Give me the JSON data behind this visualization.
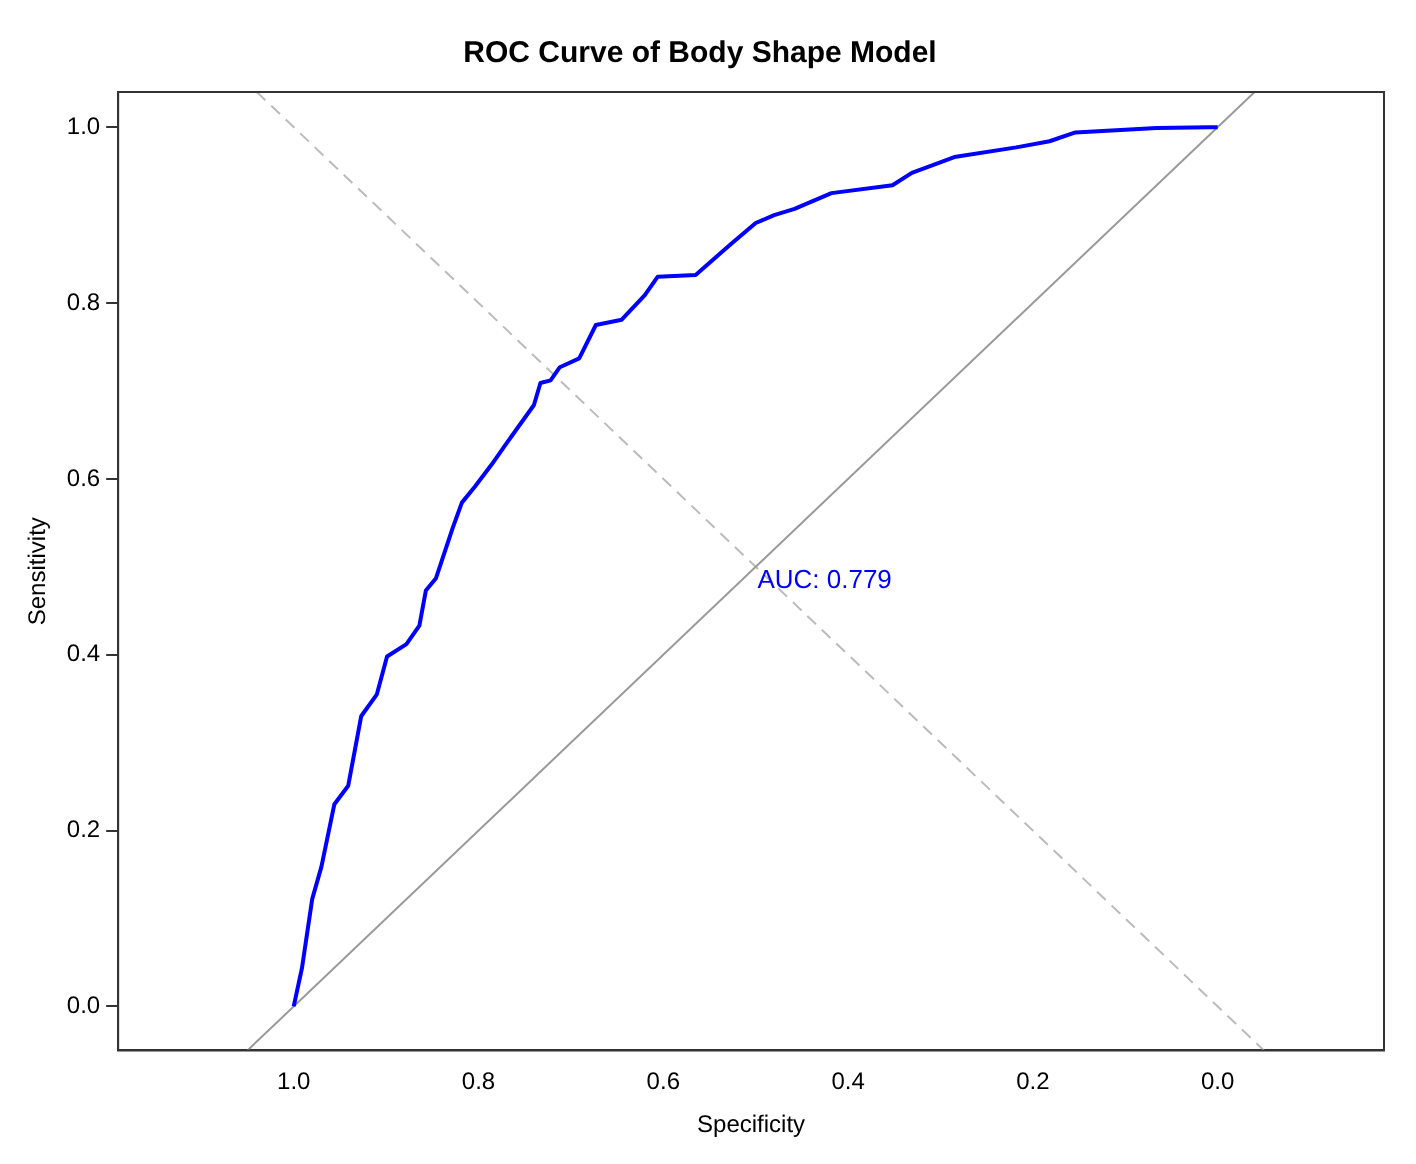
{
  "chart_data": {
    "type": "line",
    "title": "ROC Curve of Body Shape Model",
    "xlabel": "Specificity",
    "ylabel": "Sensitivity",
    "xlim": [
      1.19,
      -0.18
    ],
    "ylim": [
      -0.05,
      1.04
    ],
    "xticks": [
      {
        "value": 1,
        "label": "1.0"
      },
      {
        "value": 0.8,
        "label": "0.8"
      },
      {
        "value": 0.6,
        "label": "0.6"
      },
      {
        "value": 0.4,
        "label": "0.4"
      },
      {
        "value": 0.2,
        "label": "0.2"
      },
      {
        "value": 0,
        "label": "0.0"
      }
    ],
    "yticks": [
      {
        "value": 0,
        "label": "0.0"
      },
      {
        "value": 0.2,
        "label": "0.2"
      },
      {
        "value": 0.4,
        "label": "0.4"
      },
      {
        "value": 0.6,
        "label": "0.6"
      },
      {
        "value": 0.8,
        "label": "0.8"
      },
      {
        "value": 1,
        "label": "1.0"
      }
    ],
    "grid": false,
    "legend": false,
    "marker": "none",
    "annotations": [
      "AUC: 0.779"
    ],
    "series": [
      {
        "color": "#0000ff",
        "line_style": "solid",
        "x": [
          1.0,
          0.991,
          0.98,
          0.97,
          0.956,
          0.941,
          0.927,
          0.91,
          0.899,
          0.878,
          0.864,
          0.857,
          0.846,
          0.828,
          0.818,
          0.804,
          0.786,
          0.772,
          0.74,
          0.733,
          0.722,
          0.712,
          0.691,
          0.673,
          0.645,
          0.62,
          0.606,
          0.565,
          0.528,
          0.5,
          0.48,
          0.458,
          0.418,
          0.352,
          0.331,
          0.285,
          0.218,
          0.182,
          0.154,
          0.066,
          0.009,
          0.0
        ],
        "values": [
          0.0,
          0.044,
          0.122,
          0.159,
          0.23,
          0.251,
          0.33,
          0.355,
          0.398,
          0.412,
          0.433,
          0.473,
          0.487,
          0.544,
          0.573,
          0.591,
          0.616,
          0.637,
          0.684,
          0.709,
          0.712,
          0.727,
          0.737,
          0.775,
          0.781,
          0.809,
          0.83,
          0.832,
          0.866,
          0.891,
          0.9,
          0.907,
          0.925,
          0.934,
          0.948,
          0.966,
          0.977,
          0.984,
          0.994,
          0.999,
          1.0,
          1.0
        ]
      },
      {
        "color": "#999999",
        "line_style": "solid",
        "x": [
          1.05,
          -0.04
        ],
        "values": [
          -0.05,
          1.04
        ]
      },
      {
        "color": "#bbbbbb",
        "line_style": "dashed",
        "x": [
          1.04,
          -0.05
        ],
        "values": [
          1.04,
          -0.05
        ]
      }
    ]
  }
}
